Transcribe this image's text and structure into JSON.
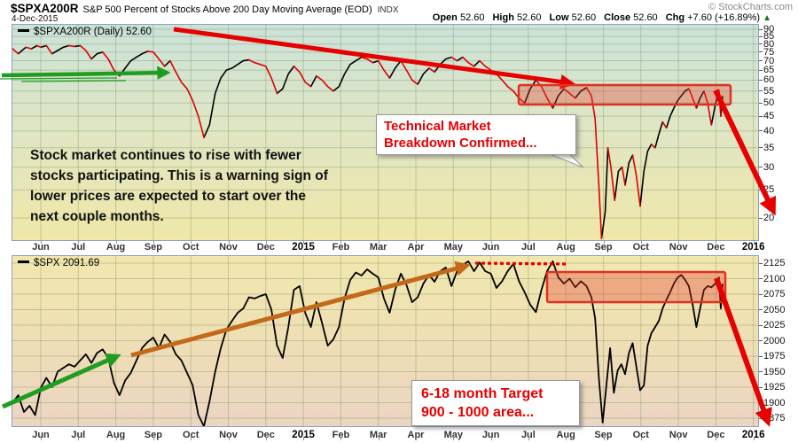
{
  "header": {
    "symbol": "$SPXA200R",
    "title": "S&P 500 Percent of Stocks Above 200 Day Moving Average (EOD)",
    "exchange": "INDX",
    "date": "4-Dec-2015",
    "copyright": "© StockCharts.com",
    "quote_items": [
      [
        "Open",
        "52.60"
      ],
      [
        "High",
        "52.60"
      ],
      [
        "Low",
        "52.60"
      ],
      [
        "Close",
        "52.60"
      ],
      [
        "Chg",
        "+7.60 (+16.89%)"
      ]
    ],
    "direction": "▲"
  },
  "annotations": {
    "warning_note": "Stock market continues to rise with fewer\nstocks participating. This is a warning sign of\nlower prices are expected to start over the\nnext couple months.",
    "breakdown_callout": "Technical Market\nBreakdown Confirmed...",
    "target_note": "6-18 month Target\n900 - 1000 area..."
  },
  "colors": {
    "annotation_red": "#e60000",
    "series_down_red": "#dd0000",
    "series_black": "#000000",
    "green": "#1f9d1f",
    "orange": "#c2691a",
    "box_fill": "rgba(228,60,45,0.35)",
    "box_stroke": "#dd3322",
    "grid": "rgba(110,140,85,0.35)",
    "panel_border": "#8aa3bd",
    "bg_top": [
      "#cbe2d9",
      "#dfe6c4",
      "#f0e7a8"
    ],
    "bg_bottom": [
      "#f1e7ae",
      "#efdfb4",
      "#ebd5c3"
    ]
  },
  "chart_data": [
    {
      "type": "line",
      "panel": "top",
      "symbol": "$SPXA200R",
      "legend": "$SPXA200R (Daily) 52.60",
      "last": 52.6,
      "y_scale": "log",
      "ylim": [
        16.9,
        93.2
      ],
      "y_ticks": [
        90,
        85,
        80,
        75,
        70,
        65,
        60,
        55,
        50,
        45,
        40,
        35,
        30,
        25,
        20
      ],
      "x_labels": [
        "Jun",
        "Jul",
        "Aug",
        "Sep",
        "Oct",
        "Nov",
        "Dec",
        "2015",
        "Feb",
        "Mar",
        "Apr",
        "May",
        "Jun",
        "Jul",
        "Aug",
        "Sep",
        "Oct",
        "Nov",
        "Dec",
        "2016"
      ],
      "x_unit": "months since Jun 2014",
      "grid": true,
      "points": [
        [
          -0.75,
          77
        ],
        [
          -0.6,
          74
        ],
        [
          -0.5,
          76
        ],
        [
          -0.4,
          78
        ],
        [
          -0.25,
          77
        ],
        [
          -0.1,
          79
        ],
        [
          0,
          78
        ],
        [
          0.15,
          79
        ],
        [
          0.3,
          74
        ],
        [
          0.45,
          76
        ],
        [
          0.6,
          78
        ],
        [
          0.75,
          79
        ],
        [
          0.9,
          78.5
        ],
        [
          1.05,
          79
        ],
        [
          1.2,
          76
        ],
        [
          1.35,
          71
        ],
        [
          1.5,
          74
        ],
        [
          1.65,
          75
        ],
        [
          1.8,
          71
        ],
        [
          1.95,
          65
        ],
        [
          2.1,
          62
        ],
        [
          2.25,
          66
        ],
        [
          2.4,
          70
        ],
        [
          2.55,
          72
        ],
        [
          2.7,
          74
        ],
        [
          2.85,
          75.5
        ],
        [
          3.0,
          75
        ],
        [
          3.15,
          71
        ],
        [
          3.3,
          67
        ],
        [
          3.45,
          70
        ],
        [
          3.6,
          64
        ],
        [
          3.75,
          59
        ],
        [
          3.9,
          56
        ],
        [
          4.05,
          51
        ],
        [
          4.2,
          45
        ],
        [
          4.35,
          38
        ],
        [
          4.5,
          42
        ],
        [
          4.65,
          54
        ],
        [
          4.8,
          61
        ],
        [
          4.95,
          65
        ],
        [
          5.1,
          66
        ],
        [
          5.25,
          68
        ],
        [
          5.4,
          70
        ],
        [
          5.55,
          70.5
        ],
        [
          5.7,
          69
        ],
        [
          5.85,
          68
        ],
        [
          6.0,
          67
        ],
        [
          6.15,
          61
        ],
        [
          6.3,
          54
        ],
        [
          6.45,
          56
        ],
        [
          6.6,
          63
        ],
        [
          6.75,
          67
        ],
        [
          6.9,
          64
        ],
        [
          7.05,
          59
        ],
        [
          7.2,
          57
        ],
        [
          7.35,
          62
        ],
        [
          7.5,
          60
        ],
        [
          7.65,
          57
        ],
        [
          7.8,
          55
        ],
        [
          7.95,
          57
        ],
        [
          8.1,
          63
        ],
        [
          8.25,
          68
        ],
        [
          8.4,
          70
        ],
        [
          8.55,
          72
        ],
        [
          8.7,
          71
        ],
        [
          8.85,
          69
        ],
        [
          9.0,
          70
        ],
        [
          9.15,
          65
        ],
        [
          9.3,
          61
        ],
        [
          9.45,
          66
        ],
        [
          9.6,
          70
        ],
        [
          9.75,
          65
        ],
        [
          9.9,
          60
        ],
        [
          10.05,
          58
        ],
        [
          10.2,
          63
        ],
        [
          10.35,
          66
        ],
        [
          10.5,
          64
        ],
        [
          10.65,
          68
        ],
        [
          10.8,
          71
        ],
        [
          10.95,
          72
        ],
        [
          11.1,
          70
        ],
        [
          11.25,
          72
        ],
        [
          11.4,
          69
        ],
        [
          11.55,
          67
        ],
        [
          11.7,
          70
        ],
        [
          11.85,
          67
        ],
        [
          12.0,
          65
        ],
        [
          12.15,
          63
        ],
        [
          12.3,
          60
        ],
        [
          12.45,
          57
        ],
        [
          12.6,
          55
        ],
        [
          12.75,
          52
        ],
        [
          12.9,
          50
        ],
        [
          13.05,
          56
        ],
        [
          13.2,
          60
        ],
        [
          13.35,
          57
        ],
        [
          13.5,
          52
        ],
        [
          13.65,
          48
        ],
        [
          13.8,
          53
        ],
        [
          13.95,
          56
        ],
        [
          14.1,
          54
        ],
        [
          14.25,
          52
        ],
        [
          14.4,
          55
        ],
        [
          14.55,
          56.5
        ],
        [
          14.68,
          53
        ],
        [
          14.78,
          44
        ],
        [
          14.88,
          26
        ],
        [
          14.95,
          17
        ],
        [
          15.05,
          21
        ],
        [
          15.12,
          35
        ],
        [
          15.2,
          30
        ],
        [
          15.3,
          23
        ],
        [
          15.4,
          29
        ],
        [
          15.5,
          30
        ],
        [
          15.58,
          26
        ],
        [
          15.68,
          31
        ],
        [
          15.78,
          33
        ],
        [
          15.88,
          28
        ],
        [
          15.98,
          22
        ],
        [
          16.08,
          29
        ],
        [
          16.18,
          34
        ],
        [
          16.28,
          36
        ],
        [
          16.38,
          35
        ],
        [
          16.48,
          39
        ],
        [
          16.58,
          43
        ],
        [
          16.68,
          41
        ],
        [
          16.78,
          45
        ],
        [
          16.88,
          48
        ],
        [
          16.98,
          51
        ],
        [
          17.08,
          53
        ],
        [
          17.18,
          55
        ],
        [
          17.28,
          56
        ],
        [
          17.38,
          52
        ],
        [
          17.48,
          48
        ],
        [
          17.58,
          52
        ],
        [
          17.68,
          55
        ],
        [
          17.78,
          50
        ],
        [
          17.88,
          42
        ],
        [
          17.98,
          49
        ],
        [
          18.08,
          55.5
        ],
        [
          18.13,
          45
        ],
        [
          18.18,
          52.6
        ]
      ]
    },
    {
      "type": "line",
      "panel": "bottom",
      "symbol": "$SPX",
      "legend": "$SPX 2091.69",
      "last": 2091.69,
      "y_scale": "linear",
      "ylim": [
        1880,
        2133
      ],
      "y_ticks": [
        2125,
        2100,
        2075,
        2050,
        2025,
        2000,
        1975,
        1950,
        1925,
        1900,
        1875
      ],
      "x_labels": [
        "Jun",
        "Jul",
        "Aug",
        "Sep",
        "Oct",
        "Nov",
        "Dec",
        "2015",
        "Feb",
        "Mar",
        "Apr",
        "May",
        "Jun",
        "Jul",
        "Aug",
        "Sep",
        "Oct",
        "Nov",
        "Dec",
        "2016"
      ],
      "x_unit": "months since Jun 2014",
      "grid": true,
      "points": [
        [
          -0.75,
          1900
        ],
        [
          -0.6,
          1912
        ],
        [
          -0.45,
          1885
        ],
        [
          -0.3,
          1895
        ],
        [
          -0.15,
          1880
        ],
        [
          0,
          1924
        ],
        [
          0.15,
          1940
        ],
        [
          0.3,
          1925
        ],
        [
          0.45,
          1950
        ],
        [
          0.6,
          1956
        ],
        [
          0.75,
          1962
        ],
        [
          0.9,
          1958
        ],
        [
          1.05,
          1968
        ],
        [
          1.2,
          1978
        ],
        [
          1.35,
          1964
        ],
        [
          1.5,
          1980
        ],
        [
          1.65,
          1986
        ],
        [
          1.8,
          1972
        ],
        [
          1.95,
          1932
        ],
        [
          2.1,
          1912
        ],
        [
          2.25,
          1936
        ],
        [
          2.4,
          1948
        ],
        [
          2.55,
          1968
        ],
        [
          2.7,
          1988
        ],
        [
          2.85,
          1998
        ],
        [
          3.0,
          2005
        ],
        [
          3.15,
          1988
        ],
        [
          3.3,
          2010
        ],
        [
          3.45,
          1998
        ],
        [
          3.6,
          1978
        ],
        [
          3.75,
          1968
        ],
        [
          3.9,
          1948
        ],
        [
          4.05,
          1928
        ],
        [
          4.2,
          1880
        ],
        [
          4.35,
          1862
        ],
        [
          4.5,
          1902
        ],
        [
          4.65,
          1950
        ],
        [
          4.8,
          1988
        ],
        [
          4.95,
          2018
        ],
        [
          5.1,
          2032
        ],
        [
          5.25,
          2045
        ],
        [
          5.4,
          2052
        ],
        [
          5.55,
          2070
        ],
        [
          5.7,
          2068
        ],
        [
          5.85,
          2072
        ],
        [
          6.0,
          2075
        ],
        [
          6.15,
          2050
        ],
        [
          6.3,
          1992
        ],
        [
          6.45,
          1972
        ],
        [
          6.6,
          2022
        ],
        [
          6.75,
          2082
        ],
        [
          6.9,
          2088
        ],
        [
          7.05,
          2045
        ],
        [
          7.2,
          2022
        ],
        [
          7.35,
          2062
        ],
        [
          7.5,
          2028
        ],
        [
          7.65,
          1992
        ],
        [
          7.8,
          2002
        ],
        [
          7.95,
          2022
        ],
        [
          8.1,
          2068
        ],
        [
          8.25,
          2098
        ],
        [
          8.4,
          2110
        ],
        [
          8.55,
          2105
        ],
        [
          8.7,
          2115
        ],
        [
          8.85,
          2108
        ],
        [
          9.0,
          2102
        ],
        [
          9.15,
          2068
        ],
        [
          9.3,
          2045
        ],
        [
          9.45,
          2082
        ],
        [
          9.6,
          2108
        ],
        [
          9.75,
          2090
        ],
        [
          9.9,
          2062
        ],
        [
          10.05,
          2070
        ],
        [
          10.2,
          2092
        ],
        [
          10.35,
          2106
        ],
        [
          10.5,
          2095
        ],
        [
          10.65,
          2112
        ],
        [
          10.8,
          2118
        ],
        [
          10.95,
          2088
        ],
        [
          11.1,
          2112
        ],
        [
          11.25,
          2122
        ],
        [
          11.4,
          2128
        ],
        [
          11.55,
          2112
        ],
        [
          11.7,
          2126
        ],
        [
          11.85,
          2112
        ],
        [
          12.0,
          2108
        ],
        [
          12.15,
          2085
        ],
        [
          12.3,
          2096
        ],
        [
          12.45,
          2112
        ],
        [
          12.6,
          2124
        ],
        [
          12.75,
          2096
        ],
        [
          12.9,
          2078
        ],
        [
          13.05,
          2058
        ],
        [
          13.2,
          2046
        ],
        [
          13.35,
          2082
        ],
        [
          13.5,
          2112
        ],
        [
          13.65,
          2128
        ],
        [
          13.8,
          2102
        ],
        [
          13.95,
          2092
        ],
        [
          14.1,
          2100
        ],
        [
          14.25,
          2086
        ],
        [
          14.4,
          2096
        ],
        [
          14.55,
          2088
        ],
        [
          14.68,
          2070
        ],
        [
          14.78,
          2036
        ],
        [
          14.88,
          1940
        ],
        [
          14.98,
          1868
        ],
        [
          15.08,
          1928
        ],
        [
          15.18,
          1988
        ],
        [
          15.28,
          1916
        ],
        [
          15.38,
          1952
        ],
        [
          15.48,
          1962
        ],
        [
          15.58,
          1946
        ],
        [
          15.68,
          1980
        ],
        [
          15.78,
          1996
        ],
        [
          15.88,
          1958
        ],
        [
          15.98,
          1920
        ],
        [
          16.08,
          1928
        ],
        [
          16.18,
          1992
        ],
        [
          16.28,
          2012
        ],
        [
          16.38,
          2022
        ],
        [
          16.48,
          2032
        ],
        [
          16.58,
          2052
        ],
        [
          16.68,
          2066
        ],
        [
          16.78,
          2078
        ],
        [
          16.88,
          2092
        ],
        [
          16.98,
          2102
        ],
        [
          17.08,
          2106
        ],
        [
          17.18,
          2098
        ],
        [
          17.28,
          2088
        ],
        [
          17.38,
          2058
        ],
        [
          17.48,
          2022
        ],
        [
          17.58,
          2052
        ],
        [
          17.68,
          2082
        ],
        [
          17.78,
          2088
        ],
        [
          17.88,
          2086
        ],
        [
          17.98,
          2092
        ],
        [
          18.08,
          2102
        ],
        [
          18.13,
          2052
        ],
        [
          18.18,
          2091.69
        ]
      ]
    }
  ]
}
